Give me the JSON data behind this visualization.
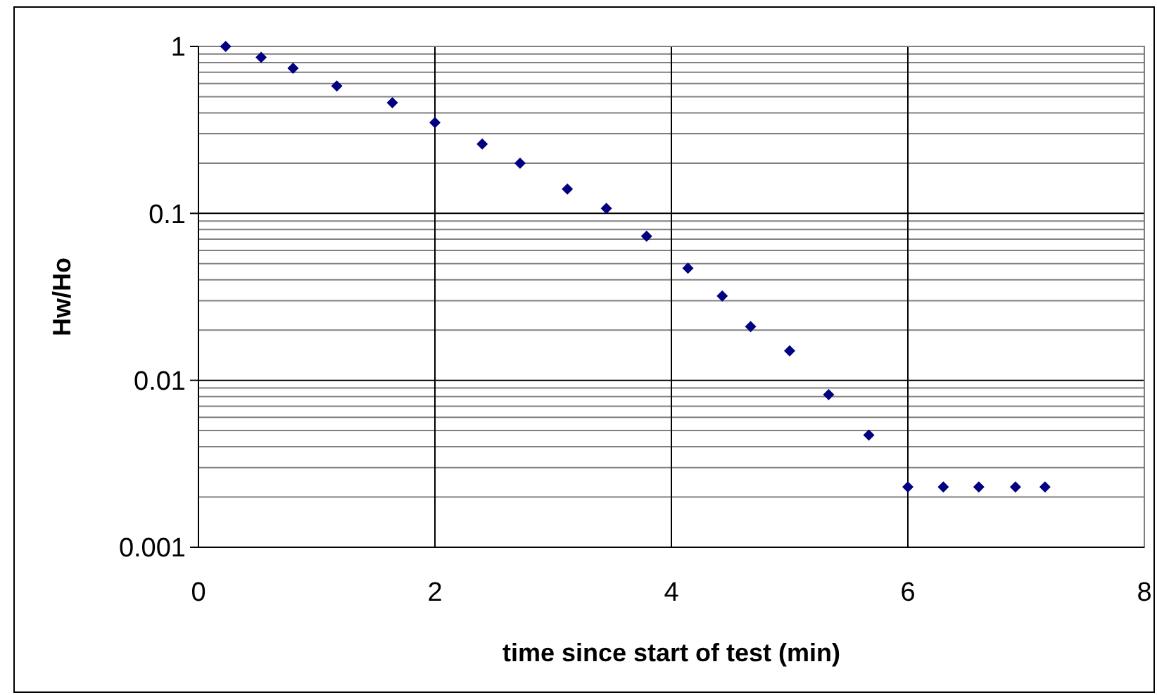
{
  "chart_data": {
    "type": "scatter",
    "xlabel": "time since start of test (min)",
    "ylabel": "Hw/Ho",
    "x": [
      0.23,
      0.53,
      0.8,
      1.17,
      1.64,
      2.0,
      2.4,
      2.72,
      3.12,
      3.45,
      3.79,
      4.14,
      4.43,
      4.67,
      5.0,
      5.33,
      5.67,
      6.0,
      6.3,
      6.6,
      6.91,
      7.16
    ],
    "series": [
      {
        "color": "#000080",
        "values": [
          1,
          0.86,
          0.74,
          0.58,
          0.46,
          0.35,
          0.26,
          0.2,
          0.14,
          0.107,
          0.073,
          0.047,
          0.032,
          0.021,
          0.015,
          0.0082,
          0.0047,
          0.0023,
          0.0023,
          0.0023,
          0.0023,
          0.0023
        ]
      }
    ],
    "xlim": [
      0,
      8
    ],
    "xticks": [
      0,
      2,
      4,
      6,
      8
    ],
    "ylim": [
      0.001,
      1
    ],
    "yticks": [
      0.001,
      {
        "value": 0.002,
        "label": null
      },
      {
        "value": 0.003,
        "label": null
      },
      {
        "value": 0.004,
        "label": null
      },
      {
        "value": 0.005,
        "label": null
      },
      {
        "value": 0.006,
        "label": null
      },
      {
        "value": 0.007,
        "label": null
      },
      {
        "value": 0.008,
        "label": null
      },
      {
        "value": 0.009,
        "label": null
      },
      0.01,
      {
        "value": 0.02,
        "label": null
      },
      {
        "value": 0.03,
        "label": null
      },
      {
        "value": 0.04,
        "label": null
      },
      {
        "value": 0.05,
        "label": null
      },
      {
        "value": 0.06,
        "label": null
      },
      {
        "value": 0.07,
        "label": null
      },
      {
        "value": 0.08,
        "label": null
      },
      {
        "value": 0.09,
        "label": null
      },
      0.1,
      {
        "value": 0.2,
        "label": null
      },
      {
        "value": 0.3,
        "label": null
      },
      {
        "value": 0.4,
        "label": null
      },
      {
        "value": 0.5,
        "label": null
      },
      {
        "value": 0.6,
        "label": null
      },
      {
        "value": 0.7,
        "label": null
      },
      {
        "value": 0.8,
        "label": null
      },
      {
        "value": 0.9,
        "label": null
      },
      1
    ],
    "log": "y",
    "grid": true,
    "marker": "diamond"
  }
}
